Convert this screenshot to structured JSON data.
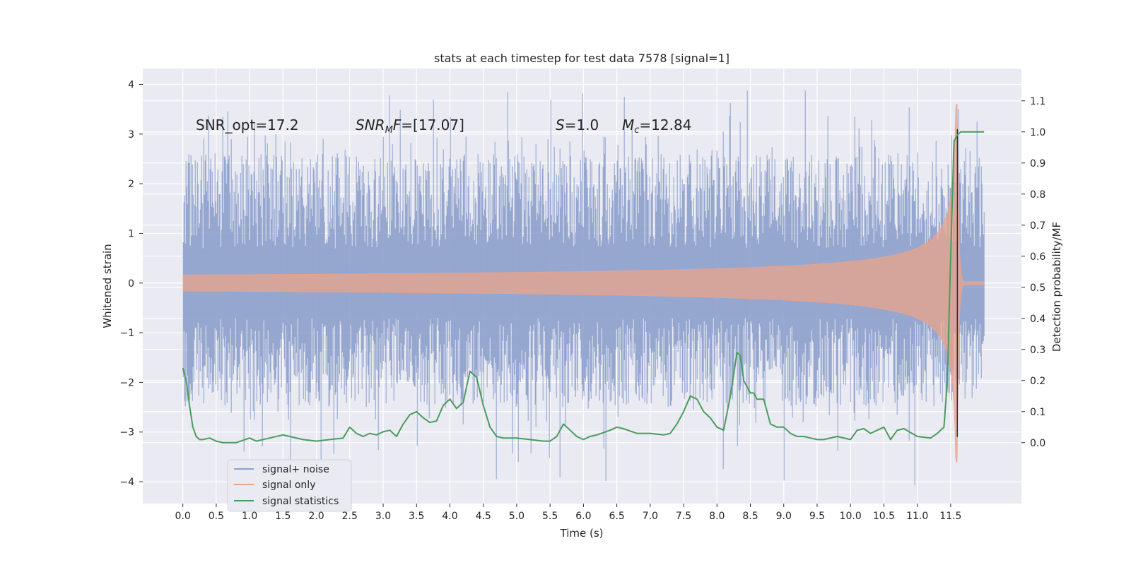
{
  "chart_data": {
    "type": "line",
    "title": "stats at each timestep for test data 7578 [signal=1]",
    "xlabel": "Time (s)",
    "ylabel": "Whitened strain",
    "y2label": "Detection probability/MF",
    "xlim": [
      -0.6,
      12.56
    ],
    "ylim": [
      -4.44,
      4.32
    ],
    "y2lim": [
      -0.196,
      1.204
    ],
    "x_ticks": [
      "0.0",
      "0.5",
      "1.0",
      "1.5",
      "2.0",
      "2.5",
      "3.0",
      "3.5",
      "4.0",
      "4.5",
      "5.0",
      "5.5",
      "6.0",
      "6.5",
      "7.0",
      "7.5",
      "8.0",
      "8.5",
      "9.0",
      "9.5",
      "10.0",
      "10.5",
      "11.0",
      "11.5"
    ],
    "y_ticks": [
      "4",
      "3",
      "2",
      "1",
      "0",
      "−1",
      "−2",
      "−3",
      "−4"
    ],
    "y2_ticks": [
      "1.1",
      "1.0",
      "0.9",
      "0.8",
      "0.7",
      "0.6",
      "0.5",
      "0.4",
      "0.3",
      "0.2",
      "0.1",
      "0.0"
    ],
    "grid": true,
    "legend_position": "lower-left",
    "annotations": [
      {
        "text": "SNR_opt=17.2"
      },
      {
        "text": "SNRMF=[17.07]"
      },
      {
        "text": "S=1.0"
      },
      {
        "text": "Mc=12.84"
      }
    ],
    "series": [
      {
        "name": "signal+ noise",
        "color": "#8da0cb",
        "axis": "left",
        "band": {
          "x_start": 0.0,
          "x_end": 12.0,
          "envelope_upper": 3.0,
          "envelope_lower": -2.8,
          "max_spike": 3.9,
          "min_spike": -4.1
        }
      },
      {
        "name": "signal only",
        "color": "#e9a38a",
        "axis": "left",
        "chirp": {
          "x_start": 0.0,
          "merger_time": 11.6,
          "x_end": 12.0,
          "peak_amplitude": 3.6
        }
      },
      {
        "name": "signal statistics",
        "color": "#4a9c5c",
        "axis": "right",
        "x": [
          0.0,
          0.05,
          0.1,
          0.15,
          0.2,
          0.25,
          0.3,
          0.4,
          0.5,
          0.6,
          0.8,
          1.0,
          1.1,
          1.3,
          1.5,
          1.6,
          1.8,
          2.0,
          2.2,
          2.4,
          2.5,
          2.6,
          2.7,
          2.8,
          2.9,
          3.0,
          3.1,
          3.2,
          3.3,
          3.4,
          3.5,
          3.6,
          3.7,
          3.8,
          3.9,
          4.0,
          4.1,
          4.2,
          4.3,
          4.4,
          4.5,
          4.6,
          4.7,
          4.8,
          5.0,
          5.2,
          5.4,
          5.5,
          5.6,
          5.7,
          5.8,
          5.9,
          6.0,
          6.1,
          6.2,
          6.4,
          6.5,
          6.6,
          6.8,
          7.0,
          7.2,
          7.3,
          7.4,
          7.5,
          7.6,
          7.7,
          7.8,
          7.9,
          8.0,
          8.1,
          8.2,
          8.3,
          8.35,
          8.4,
          8.5,
          8.55,
          8.6,
          8.7,
          8.8,
          8.9,
          9.0,
          9.1,
          9.2,
          9.3,
          9.4,
          9.5,
          9.6,
          9.8,
          10.0,
          10.1,
          10.2,
          10.3,
          10.4,
          10.5,
          10.6,
          10.7,
          10.8,
          11.0,
          11.2,
          11.3,
          11.4,
          11.45,
          11.5,
          11.55,
          11.6,
          11.65,
          11.7,
          11.8,
          11.9,
          12.0
        ],
        "values": [
          0.24,
          0.2,
          0.12,
          0.05,
          0.02,
          0.01,
          0.01,
          0.015,
          0.005,
          0.0,
          0.0,
          0.015,
          0.005,
          0.015,
          0.025,
          0.02,
          0.01,
          0.005,
          0.01,
          0.015,
          0.05,
          0.03,
          0.02,
          0.03,
          0.025,
          0.035,
          0.04,
          0.02,
          0.06,
          0.09,
          0.1,
          0.08,
          0.065,
          0.07,
          0.12,
          0.14,
          0.11,
          0.13,
          0.23,
          0.21,
          0.12,
          0.05,
          0.02,
          0.015,
          0.015,
          0.01,
          0.005,
          0.005,
          0.02,
          0.06,
          0.04,
          0.02,
          0.01,
          0.02,
          0.025,
          0.04,
          0.05,
          0.045,
          0.03,
          0.03,
          0.025,
          0.03,
          0.06,
          0.1,
          0.15,
          0.14,
          0.1,
          0.08,
          0.05,
          0.04,
          0.15,
          0.29,
          0.28,
          0.2,
          0.16,
          0.16,
          0.14,
          0.14,
          0.06,
          0.05,
          0.05,
          0.03,
          0.02,
          0.02,
          0.015,
          0.01,
          0.01,
          0.02,
          0.01,
          0.04,
          0.045,
          0.03,
          0.04,
          0.05,
          0.01,
          0.04,
          0.045,
          0.02,
          0.015,
          0.03,
          0.05,
          0.2,
          0.6,
          0.97,
          0.99,
          1.0,
          1.0,
          1.0,
          1.0,
          1.0
        ]
      }
    ]
  }
}
